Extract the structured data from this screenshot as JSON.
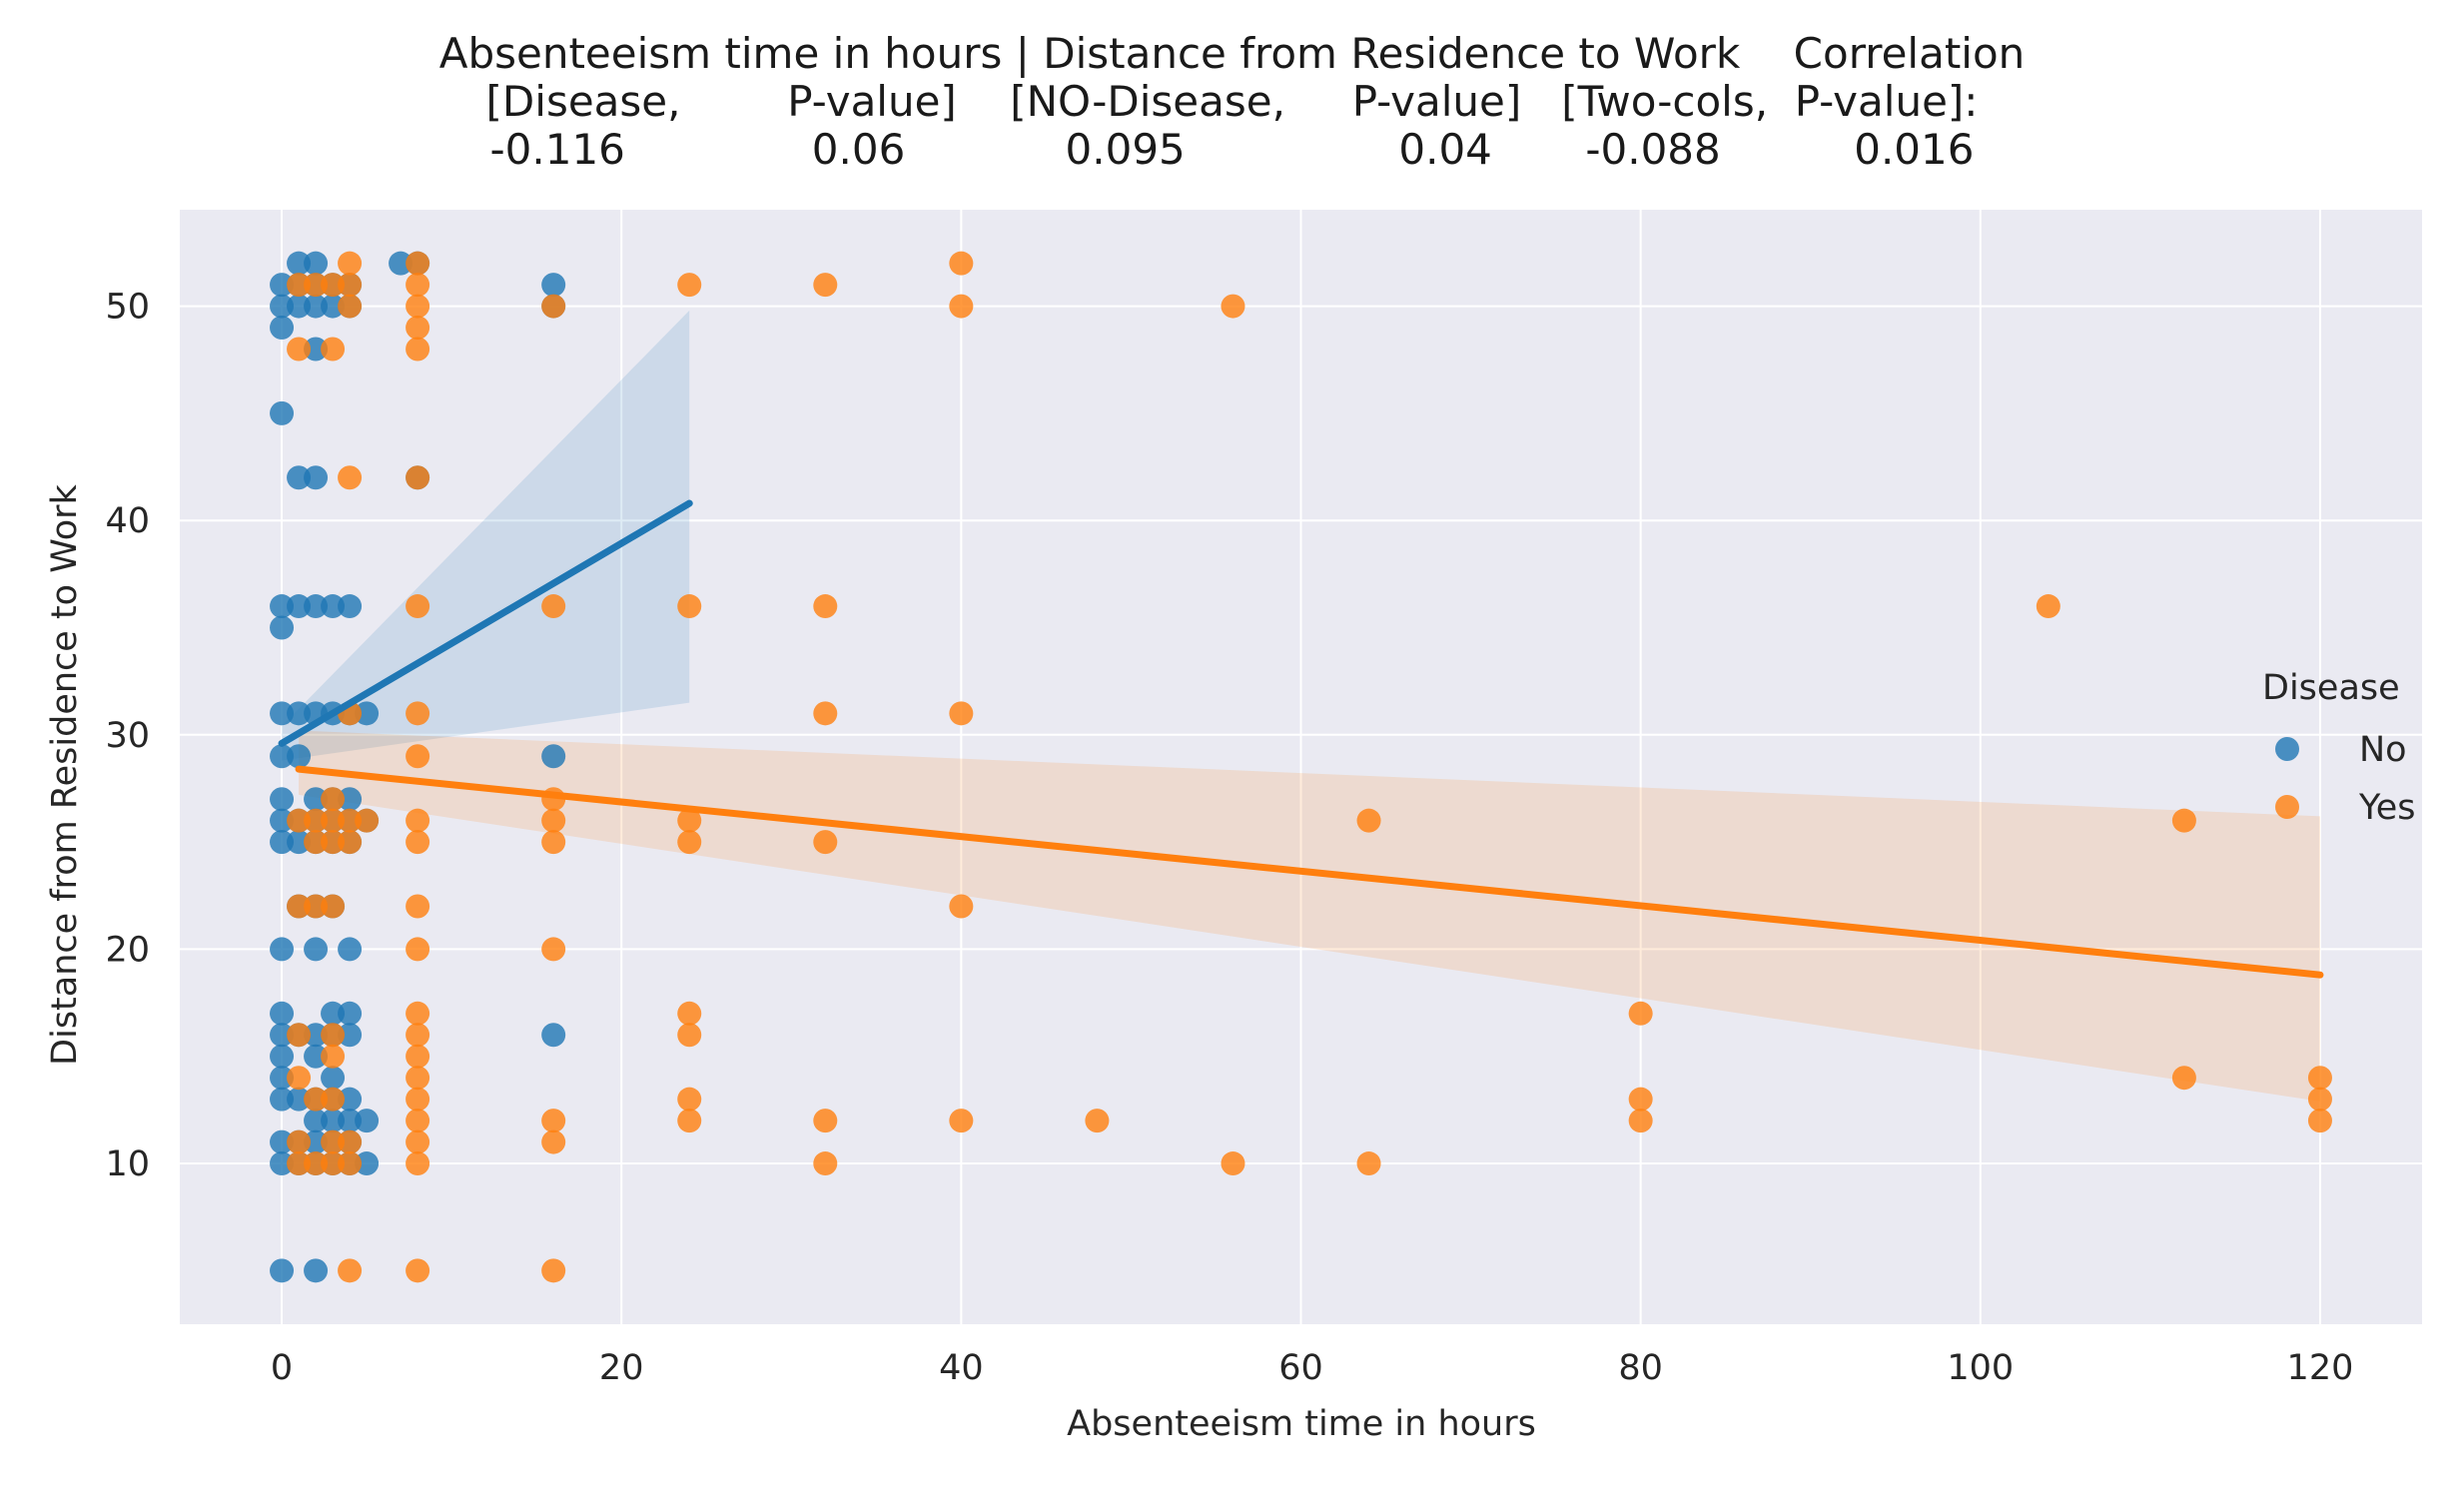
{
  "chart_data": {
    "type": "scatter",
    "title_lines": [
      "Absenteeism time in hours | Distance from Residence to Work    Correlation",
      "[Disease,        P-value]    [NO-Disease,     P-value]   [Two-cols,  P-value]:",
      "-0.116              0.06            0.095                0.04       -0.088          0.016"
    ],
    "xlabel": "Absenteeism time in hours",
    "ylabel": "Distance from Residence to Work",
    "xlim": [
      -6,
      126
    ],
    "ylim": [
      2.5,
      54.5
    ],
    "xticks": [
      0,
      20,
      40,
      60,
      80,
      100,
      120
    ],
    "yticks": [
      10,
      20,
      30,
      40,
      50
    ],
    "grid": true,
    "background": "#eaeaf2",
    "legend": {
      "title": "Disease",
      "placement": "right",
      "entries": [
        "No",
        "Yes"
      ]
    },
    "series": [
      {
        "name": "No",
        "color": "#1f77b4",
        "points": [
          [
            0,
            51
          ],
          [
            0,
            50
          ],
          [
            0,
            49
          ],
          [
            0,
            45
          ],
          [
            0,
            36
          ],
          [
            0,
            35
          ],
          [
            0,
            31
          ],
          [
            0,
            29
          ],
          [
            0,
            27
          ],
          [
            0,
            26
          ],
          [
            0,
            25
          ],
          [
            0,
            20
          ],
          [
            0,
            17
          ],
          [
            0,
            16
          ],
          [
            0,
            15
          ],
          [
            0,
            14
          ],
          [
            0,
            13
          ],
          [
            0,
            11
          ],
          [
            0,
            10
          ],
          [
            0,
            5
          ],
          [
            1,
            52
          ],
          [
            1,
            51
          ],
          [
            1,
            50
          ],
          [
            1,
            42
          ],
          [
            1,
            36
          ],
          [
            1,
            31
          ],
          [
            1,
            29
          ],
          [
            1,
            26
          ],
          [
            1,
            25
          ],
          [
            1,
            22
          ],
          [
            1,
            16
          ],
          [
            1,
            13
          ],
          [
            1,
            11
          ],
          [
            1,
            10
          ],
          [
            2,
            52
          ],
          [
            2,
            51
          ],
          [
            2,
            50
          ],
          [
            2,
            48
          ],
          [
            2,
            42
          ],
          [
            2,
            36
          ],
          [
            2,
            31
          ],
          [
            2,
            27
          ],
          [
            2,
            26
          ],
          [
            2,
            25
          ],
          [
            2,
            22
          ],
          [
            2,
            20
          ],
          [
            2,
            16
          ],
          [
            2,
            15
          ],
          [
            2,
            13
          ],
          [
            2,
            12
          ],
          [
            2,
            11
          ],
          [
            2,
            10
          ],
          [
            2,
            5
          ],
          [
            3,
            51
          ],
          [
            3,
            50
          ],
          [
            3,
            36
          ],
          [
            3,
            31
          ],
          [
            3,
            27
          ],
          [
            3,
            26
          ],
          [
            3,
            25
          ],
          [
            3,
            22
          ],
          [
            3,
            17
          ],
          [
            3,
            16
          ],
          [
            3,
            14
          ],
          [
            3,
            13
          ],
          [
            3,
            12
          ],
          [
            3,
            11
          ],
          [
            3,
            10
          ],
          [
            4,
            51
          ],
          [
            4,
            50
          ],
          [
            4,
            36
          ],
          [
            4,
            31
          ],
          [
            4,
            27
          ],
          [
            4,
            26
          ],
          [
            4,
            25
          ],
          [
            4,
            20
          ],
          [
            4,
            17
          ],
          [
            4,
            16
          ],
          [
            4,
            13
          ],
          [
            4,
            12
          ],
          [
            4,
            11
          ],
          [
            4,
            10
          ],
          [
            5,
            31
          ],
          [
            5,
            26
          ],
          [
            5,
            12
          ],
          [
            5,
            10
          ],
          [
            7,
            52
          ],
          [
            8,
            52
          ],
          [
            8,
            42
          ],
          [
            16,
            51
          ],
          [
            16,
            50
          ],
          [
            16,
            29
          ],
          [
            16,
            16
          ]
        ],
        "fit": {
          "x": [
            0,
            24
          ],
          "y": [
            29.6,
            40.8
          ],
          "ci_lower": [
            28.8,
            31.5
          ],
          "ci_upper": [
            30.4,
            49.8
          ]
        }
      },
      {
        "name": "Yes",
        "color": "#ff7f0e",
        "points": [
          [
            1,
            51
          ],
          [
            1,
            48
          ],
          [
            1,
            26
          ],
          [
            1,
            22
          ],
          [
            1,
            16
          ],
          [
            1,
            14
          ],
          [
            1,
            11
          ],
          [
            1,
            10
          ],
          [
            2,
            51
          ],
          [
            2,
            26
          ],
          [
            2,
            25
          ],
          [
            2,
            22
          ],
          [
            2,
            13
          ],
          [
            2,
            10
          ],
          [
            3,
            51
          ],
          [
            3,
            48
          ],
          [
            3,
            27
          ],
          [
            3,
            26
          ],
          [
            3,
            25
          ],
          [
            3,
            22
          ],
          [
            3,
            16
          ],
          [
            3,
            15
          ],
          [
            3,
            13
          ],
          [
            3,
            11
          ],
          [
            3,
            10
          ],
          [
            4,
            52
          ],
          [
            4,
            51
          ],
          [
            4,
            50
          ],
          [
            4,
            42
          ],
          [
            4,
            31
          ],
          [
            4,
            26
          ],
          [
            4,
            25
          ],
          [
            4,
            11
          ],
          [
            4,
            10
          ],
          [
            4,
            5
          ],
          [
            5,
            26
          ],
          [
            8,
            52
          ],
          [
            8,
            51
          ],
          [
            8,
            50
          ],
          [
            8,
            49
          ],
          [
            8,
            48
          ],
          [
            8,
            42
          ],
          [
            8,
            36
          ],
          [
            8,
            31
          ],
          [
            8,
            29
          ],
          [
            8,
            26
          ],
          [
            8,
            25
          ],
          [
            8,
            22
          ],
          [
            8,
            20
          ],
          [
            8,
            17
          ],
          [
            8,
            16
          ],
          [
            8,
            15
          ],
          [
            8,
            14
          ],
          [
            8,
            13
          ],
          [
            8,
            12
          ],
          [
            8,
            11
          ],
          [
            8,
            10
          ],
          [
            8,
            5
          ],
          [
            16,
            50
          ],
          [
            16,
            36
          ],
          [
            16,
            27
          ],
          [
            16,
            26
          ],
          [
            16,
            25
          ],
          [
            16,
            20
          ],
          [
            16,
            12
          ],
          [
            16,
            11
          ],
          [
            16,
            5
          ],
          [
            24,
            51
          ],
          [
            24,
            36
          ],
          [
            24,
            26
          ],
          [
            24,
            25
          ],
          [
            24,
            17
          ],
          [
            24,
            16
          ],
          [
            24,
            13
          ],
          [
            24,
            12
          ],
          [
            32,
            51
          ],
          [
            32,
            36
          ],
          [
            32,
            31
          ],
          [
            32,
            25
          ],
          [
            32,
            12
          ],
          [
            32,
            10
          ],
          [
            40,
            52
          ],
          [
            40,
            50
          ],
          [
            40,
            31
          ],
          [
            40,
            22
          ],
          [
            40,
            12
          ],
          [
            48,
            12
          ],
          [
            56,
            50
          ],
          [
            56,
            10
          ],
          [
            64,
            26
          ],
          [
            64,
            10
          ],
          [
            80,
            17
          ],
          [
            80,
            13
          ],
          [
            80,
            12
          ],
          [
            104,
            36
          ],
          [
            112,
            26
          ],
          [
            112,
            14
          ],
          [
            120,
            14
          ],
          [
            120,
            13
          ],
          [
            120,
            12
          ]
        ],
        "fit": {
          "x": [
            1,
            120
          ],
          "y": [
            28.4,
            18.8
          ],
          "ci_lower": [
            27.2,
            12.9
          ],
          "ci_upper": [
            30.2,
            26.2
          ]
        }
      }
    ]
  }
}
